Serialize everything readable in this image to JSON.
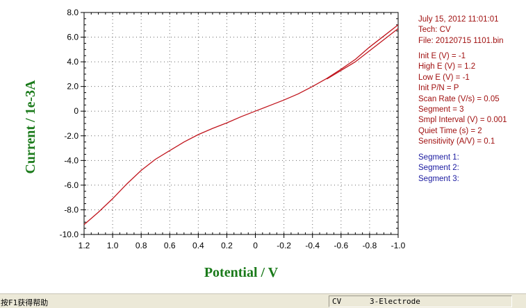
{
  "chart_data": {
    "type": "line",
    "xlabel": "Potential / V",
    "ylabel": "Current / 1e-3A",
    "xlim": [
      1.2,
      -1.0
    ],
    "ylim": [
      -10,
      8
    ],
    "x_reversed": true,
    "grid": "dotted",
    "xticks": [
      "1.2",
      "1.0",
      "0.8",
      "0.6",
      "0.4",
      "0.2",
      "0",
      "-0.2",
      "-0.4",
      "-0.6",
      "-0.8",
      "-1.0"
    ],
    "yticks": [
      "8.0",
      "6.0",
      "4.0",
      "2.0",
      "0",
      "-2.0",
      "-4.0",
      "-6.0",
      "-8.0",
      "-10.0"
    ],
    "color": "#c0141c",
    "series": [
      {
        "x": [
          1.2,
          1.1,
          1.0,
          0.9,
          0.8,
          0.7,
          0.6,
          0.5,
          0.4,
          0.3,
          0.2,
          0.1,
          0,
          -0.1,
          -0.2,
          -0.3,
          -0.4,
          -0.5,
          -0.6,
          -0.7,
          -0.8,
          -0.9,
          -1.0
        ],
        "y": [
          -9.2,
          -8.2,
          -7.1,
          -5.9,
          -4.8,
          -3.9,
          -3.2,
          -2.5,
          -1.9,
          -1.4,
          -0.95,
          -0.45,
          0,
          0.45,
          0.9,
          1.4,
          2.0,
          2.65,
          3.4,
          4.2,
          5.2,
          6.1,
          7.0
        ]
      },
      {
        "x": [
          -0.5,
          -0.6,
          -0.7,
          -0.8,
          -0.9,
          -1.0
        ],
        "y": [
          2.6,
          3.3,
          4.0,
          4.9,
          5.8,
          6.7
        ]
      }
    ]
  },
  "info": {
    "header": [
      "July 15, 2012   11:01:01",
      "Tech: CV",
      "File: 20120715 1101.bin"
    ],
    "params": [
      "Init E (V) = -1",
      "High E (V) = 1.2",
      "Low E (V) = -1",
      "Init P/N = P",
      "Scan Rate (V/s) = 0.05",
      "Segment = 3",
      "Smpl Interval (V) = 0.001",
      "Quiet Time (s) = 2",
      "Sensitivity (A/V) = 0.1"
    ],
    "segments": [
      "Segment 1:",
      "Segment 2:",
      "Segment 3:"
    ]
  },
  "status": {
    "help": "按F1获得帮助",
    "technique": "CV",
    "electrode": "3-Electrode"
  }
}
